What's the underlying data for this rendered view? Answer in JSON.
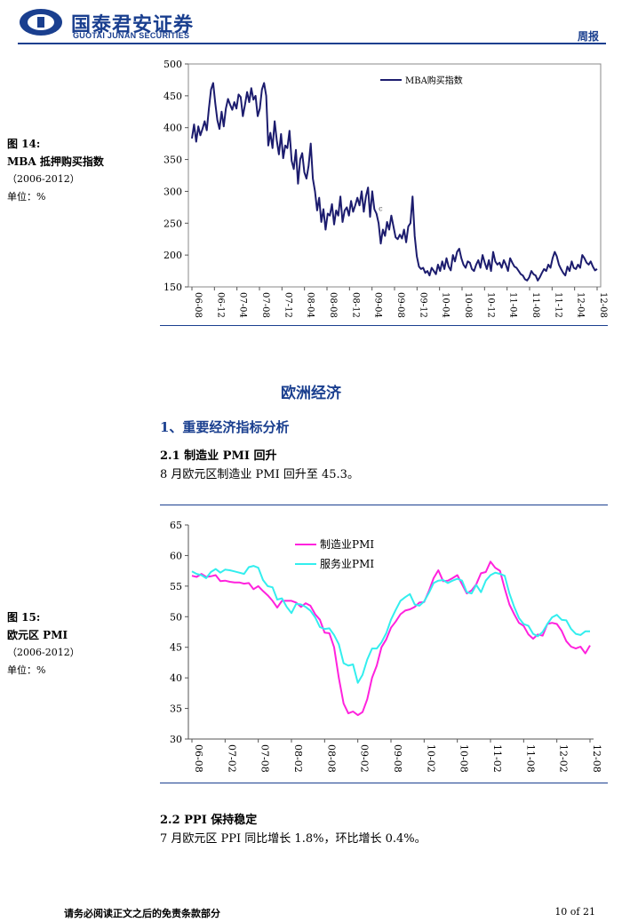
{
  "header": {
    "brand_cn": "国泰君安证券",
    "brand_en": "GUOTAI JUNAN SECURITIES",
    "report_type": "周报",
    "brand_color": "#1a3f8f"
  },
  "figure14": {
    "title_prefix": "图 14:",
    "title": "MBA 抵押购买指数",
    "period": "（2006-2012）",
    "unit": "单位：%"
  },
  "figure15": {
    "title_prefix": "图 15:",
    "title": "欧元区 PMI",
    "period": "（2006-2012）",
    "unit": "单位：%"
  },
  "section": {
    "title": "欧洲经济",
    "subtitle": "1、重要经济指标分析",
    "h1": "2.1  制造业 PMI 回升",
    "p1": "8 月欧元区制造业 PMI 回升至 45.3。",
    "h2": "2.2 PPI 保持稳定",
    "p2": "7 月欧元区 PPI 同比增长 1.8%，环比增长 0.4%。"
  },
  "footer": {
    "disclaimer": "请务必阅读正文之后的免责条款部分",
    "page": "10 of 21"
  },
  "chart_data": [
    {
      "type": "line",
      "x_start": "06-08",
      "x_end": "12-08",
      "ylim": [
        150,
        500
      ],
      "yticks": [
        150,
        200,
        250,
        300,
        350,
        400,
        450,
        500
      ],
      "xticks": [
        "06-08",
        "06-12",
        "07-04",
        "07-08",
        "07-12",
        "08-04",
        "08-08",
        "08-12",
        "09-04",
        "09-08",
        "09-12",
        "10-04",
        "10-08",
        "10-12",
        "11-04",
        "11-08",
        "11-12",
        "12-04",
        "12-08"
      ],
      "grid": false,
      "legend": "top-center",
      "series": [
        {
          "name": "MBA购买指数",
          "color": "#1c1c6e",
          "values": [
            383,
            405,
            378,
            402,
            388,
            398,
            410,
            396,
            430,
            460,
            470,
            438,
            412,
            398,
            425,
            402,
            430,
            445,
            436,
            428,
            440,
            430,
            452,
            448,
            418,
            436,
            456,
            440,
            462,
            444,
            450,
            418,
            430,
            460,
            470,
            450,
            372,
            392,
            368,
            410,
            380,
            358,
            390,
            352,
            372,
            368,
            395,
            348,
            335,
            365,
            312,
            350,
            360,
            330,
            320,
            340,
            375,
            320,
            300,
            270,
            290,
            252,
            272,
            240,
            265,
            262,
            280,
            248,
            270,
            262,
            292,
            252,
            270,
            275,
            262,
            285,
            268,
            278,
            290,
            278,
            300,
            268,
            292,
            306,
            260,
            300,
            272,
            265,
            250,
            218,
            240,
            230,
            252,
            240,
            262,
            245,
            228,
            225,
            232,
            226,
            240,
            220,
            245,
            250,
            292,
            230,
            198,
            182,
            178,
            180,
            172,
            175,
            168,
            180,
            175,
            170,
            185,
            175,
            190,
            178,
            195,
            182,
            176,
            200,
            190,
            205,
            210,
            195,
            185,
            180,
            190,
            188,
            178,
            175,
            185,
            192,
            180,
            200,
            188,
            178,
            192,
            175,
            205,
            190,
            185,
            188,
            180,
            192,
            185,
            175,
            195,
            188,
            182,
            180,
            175,
            170,
            168,
            162,
            160,
            165,
            175,
            170,
            168,
            160,
            165,
            172,
            178,
            175,
            185,
            180,
            195,
            205,
            198,
            185,
            178,
            172,
            168,
            182,
            175,
            190,
            180,
            178,
            185,
            180,
            200,
            195,
            188,
            185,
            190,
            182,
            176,
            178
          ],
          "annotation": "c"
        }
      ]
    },
    {
      "type": "line",
      "x_start": "06-08",
      "x_end": "12-08",
      "ylim": [
        30,
        65
      ],
      "yticks": [
        30,
        35,
        40,
        45,
        50,
        55,
        60,
        65
      ],
      "xticks": [
        "06-08",
        "07-02",
        "07-08",
        "08-02",
        "08-08",
        "09-02",
        "09-08",
        "10-02",
        "10-08",
        "11-02",
        "11-08",
        "12-02",
        "12-08"
      ],
      "grid": false,
      "legend": "top-center",
      "series": [
        {
          "name": "制造业PMI",
          "color": "#ff22dd",
          "values": [
            56.7,
            56.5,
            57.0,
            56.5,
            56.6,
            56.8,
            55.8,
            55.9,
            55.7,
            55.6,
            55.6,
            55.4,
            55.5,
            54.5,
            55.0,
            54.2,
            53.5,
            52.6,
            51.5,
            52.6,
            52.6,
            52.6,
            52.3,
            51.6,
            52.2,
            51.8,
            50.4,
            49.5,
            47.4,
            47.3,
            45.0,
            40.0,
            35.8,
            34.2,
            34.5,
            33.9,
            34.4,
            36.5,
            40.0,
            42.0,
            45.0,
            46.3,
            48.2,
            49.2,
            50.4,
            51.0,
            51.2,
            51.6,
            52.3,
            52.4,
            54.2,
            56.3,
            57.6,
            55.8,
            55.9,
            56.3,
            56.8,
            55.3,
            53.8,
            54.3,
            55.3,
            57.1,
            57.3,
            59.0,
            58.0,
            57.5,
            54.6,
            52.0,
            50.4,
            49.0,
            48.5,
            47.1,
            46.4,
            47.1,
            46.9,
            48.8,
            49.0,
            48.8,
            47.7,
            46.0,
            45.1,
            44.8,
            45.1,
            44.0,
            45.3
          ]
        },
        {
          "name": "服务业PMI",
          "color": "#33eeee",
          "values": [
            57.4,
            57.0,
            56.8,
            56.3,
            57.3,
            57.8,
            57.2,
            57.7,
            57.6,
            57.4,
            57.2,
            57.0,
            58.1,
            58.3,
            58.0,
            56.0,
            55.0,
            54.8,
            52.8,
            53.0,
            51.6,
            50.6,
            52.1,
            52.0,
            51.6,
            51.0,
            49.9,
            48.3,
            48.0,
            48.1,
            47.0,
            45.5,
            42.4,
            42.0,
            42.2,
            39.2,
            40.5,
            43.0,
            44.8,
            44.8,
            45.8,
            47.3,
            49.5,
            51.1,
            52.6,
            53.2,
            53.7,
            52.0,
            51.8,
            52.5,
            53.9,
            55.5,
            55.9,
            56.0,
            55.5,
            55.9,
            56.2,
            55.9,
            54.0,
            53.8,
            55.2,
            54.0,
            55.9,
            56.8,
            57.2,
            57.0,
            56.7,
            53.8,
            51.6,
            49.8,
            48.8,
            48.5,
            47.2,
            46.8,
            47.5,
            48.8,
            49.9,
            50.3,
            49.5,
            49.4,
            48.0,
            47.2,
            47.0,
            47.6,
            47.6
          ]
        }
      ]
    }
  ]
}
